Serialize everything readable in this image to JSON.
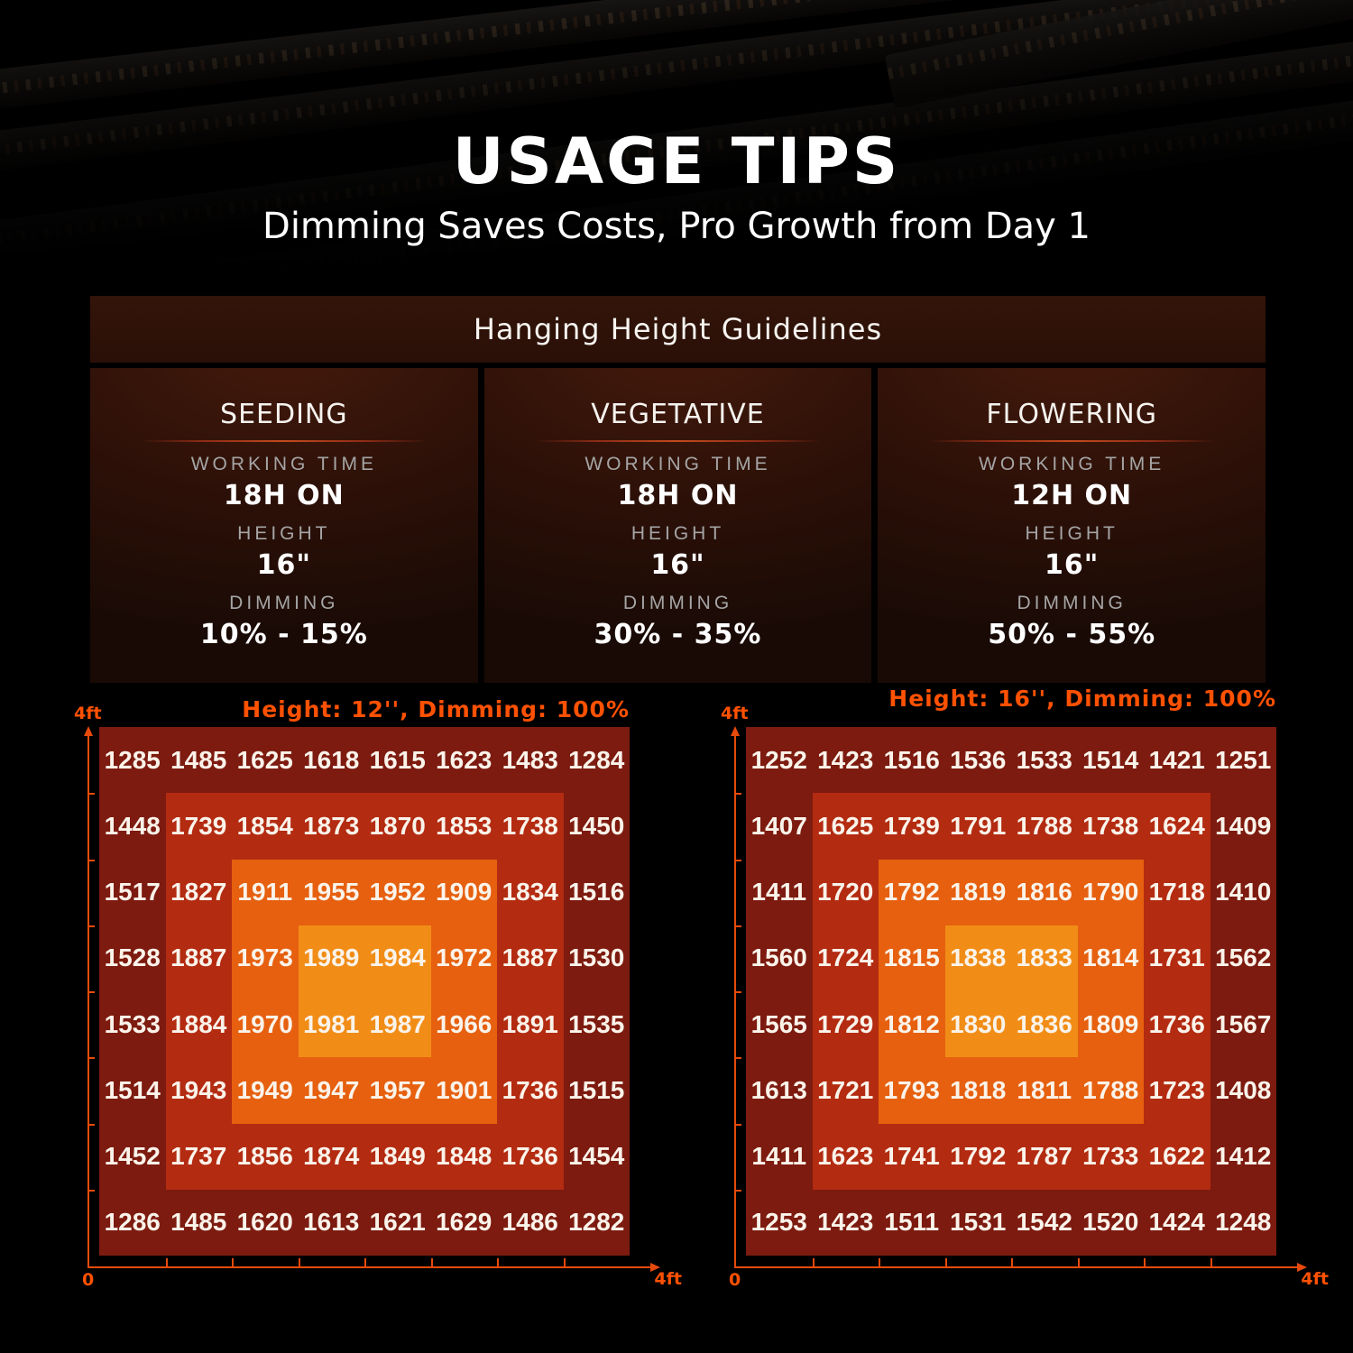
{
  "page": {
    "title": "USAGE TIPS",
    "subtitle": "Dimming Saves Costs, Pro Growth from Day 1"
  },
  "guidelines": {
    "title": "Hanging Height Guidelines",
    "labels": {
      "working_time": "WORKING TIME",
      "height": "HEIGHT",
      "dimming": "DIMMING"
    },
    "stages": [
      {
        "name": "SEEDING",
        "working_time": "18H ON",
        "height": "16\"",
        "dimming": "10% - 15%"
      },
      {
        "name": "VEGETATIVE",
        "working_time": "18H ON",
        "height": "16\"",
        "dimming": "30% - 35%"
      },
      {
        "name": "FLOWERING",
        "working_time": "12H ON",
        "height": "16\"",
        "dimming": "50% - 55%"
      }
    ]
  },
  "chart_data": [
    {
      "type": "heatmap",
      "title": "Height: 12'', Dimming: 100%",
      "axis": {
        "origin": "0",
        "x_max": "4ft",
        "y_max": "4ft",
        "x_range_ft": [
          0,
          4
        ],
        "y_range_ft": [
          0,
          4
        ]
      },
      "rows": 8,
      "cols": 8,
      "values": [
        [
          1285,
          1485,
          1625,
          1618,
          1615,
          1623,
          1483,
          1284
        ],
        [
          1448,
          1739,
          1854,
          1873,
          1870,
          1853,
          1738,
          1450
        ],
        [
          1517,
          1827,
          1911,
          1955,
          1952,
          1909,
          1834,
          1516
        ],
        [
          1528,
          1887,
          1973,
          1989,
          1984,
          1972,
          1887,
          1530
        ],
        [
          1533,
          1884,
          1970,
          1981,
          1987,
          1966,
          1891,
          1535
        ],
        [
          1514,
          1943,
          1949,
          1947,
          1957,
          1901,
          1736,
          1515
        ],
        [
          1452,
          1737,
          1856,
          1874,
          1849,
          1848,
          1736,
          1454
        ],
        [
          1286,
          1485,
          1620,
          1613,
          1621,
          1629,
          1486,
          1282
        ]
      ],
      "zone_colors": {
        "outer": "#7d1b10",
        "mid": "#b32b11",
        "inner": "#e6600f",
        "center": "#f18d17"
      }
    },
    {
      "type": "heatmap",
      "title": "Height: 16'', Dimming: 100%",
      "axis": {
        "origin": "0",
        "x_max": "4ft",
        "y_max": "4ft",
        "x_range_ft": [
          0,
          4
        ],
        "y_range_ft": [
          0,
          4
        ]
      },
      "rows": 8,
      "cols": 8,
      "values": [
        [
          1252,
          1423,
          1516,
          1536,
          1533,
          1514,
          1421,
          1251
        ],
        [
          1407,
          1625,
          1739,
          1791,
          1788,
          1738,
          1624,
          1409
        ],
        [
          1411,
          1720,
          1792,
          1819,
          1816,
          1790,
          1718,
          1410
        ],
        [
          1560,
          1724,
          1815,
          1838,
          1833,
          1814,
          1731,
          1562
        ],
        [
          1565,
          1729,
          1812,
          1830,
          1836,
          1809,
          1736,
          1567
        ],
        [
          1613,
          1721,
          1793,
          1818,
          1811,
          1788,
          1723,
          1408
        ],
        [
          1411,
          1623,
          1741,
          1792,
          1787,
          1733,
          1622,
          1412
        ],
        [
          1253,
          1423,
          1511,
          1531,
          1542,
          1520,
          1424,
          1248
        ]
      ],
      "zone_colors": {
        "outer": "#7d1b10",
        "mid": "#b32b11",
        "inner": "#e6600f",
        "center": "#f18d17"
      }
    }
  ]
}
